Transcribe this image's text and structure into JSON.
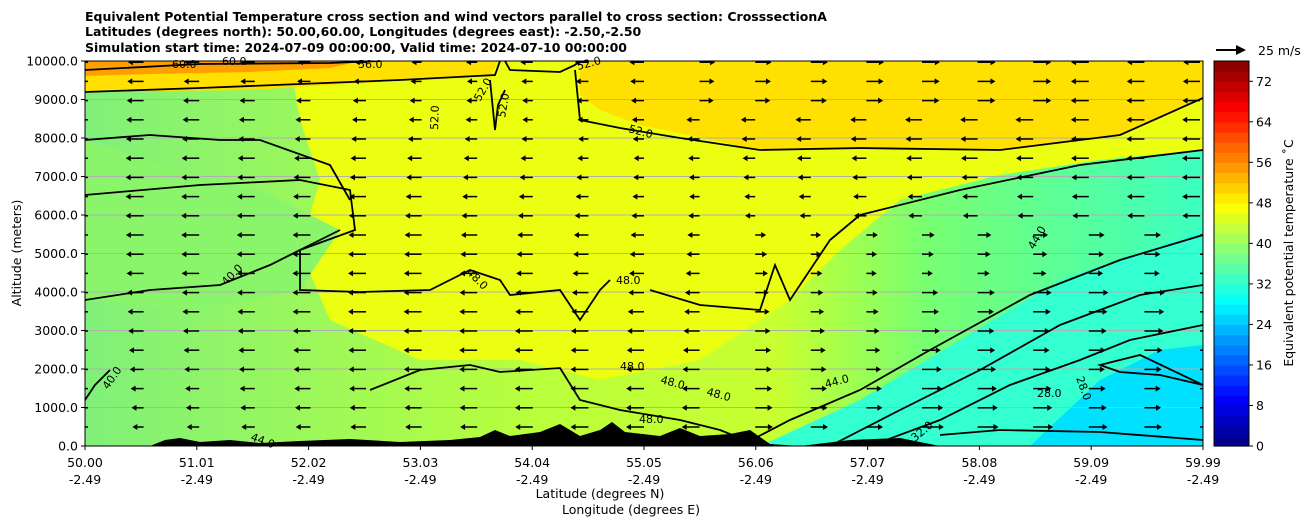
{
  "chart_data": {
    "type": "heatmap",
    "title_lines": [
      "Equivalent Potential Temperature cross section and wind vectors parallel to cross section: CrosssectionA",
      "Latitudes (degrees north): 50.00,60.00, Longitudes (degrees east): -2.50,-2.50",
      "Simulation start time: 2024-07-09 00:00:00, Valid time: 2024-07-10 00:00:00"
    ],
    "ylabel": "Altitude (meters)",
    "xlabel_lat": "Latitude (degrees N)",
    "xlabel_lon": "Longitude (degrees E)",
    "ylim": [
      0,
      10000
    ],
    "y_ticks": [
      "0.0",
      "1000.0",
      "2000.0",
      "3000.0",
      "4000.0",
      "5000.0",
      "6000.0",
      "7000.0",
      "8000.0",
      "9000.0",
      "10000.0"
    ],
    "x_ticks_lat": [
      "50.00",
      "51.01",
      "52.02",
      "53.03",
      "54.04",
      "55.05",
      "56.06",
      "57.07",
      "58.08",
      "59.09",
      "59.99"
    ],
    "x_ticks_lon": [
      "-2.49",
      "-2.49",
      "-2.49",
      "-2.49",
      "-2.49",
      "-2.49",
      "-2.49",
      "-2.49",
      "-2.49",
      "-2.49",
      "-2.49"
    ],
    "colorbar": {
      "label": "Equivalent potential temperature ˚C",
      "min": 0,
      "max": 76,
      "ticks": [
        "0",
        "8",
        "16",
        "24",
        "32",
        "40",
        "48",
        "56",
        "64",
        "72"
      ],
      "colormap": "jet"
    },
    "quiver_key": {
      "label": "25 m/s",
      "speed": 25
    },
    "contour_labels": [
      "40.0",
      "40.0",
      "44.0",
      "44.0",
      "44.0",
      "48.0",
      "48.0",
      "48.0",
      "48.0",
      "48.0",
      "48.0",
      "52.0",
      "52.0",
      "52.0",
      "52.0",
      "52.0",
      "56.0",
      "60.0",
      "60.0",
      "28.0",
      "28.0",
      "32.0",
      "32.0"
    ],
    "grid": true
  }
}
